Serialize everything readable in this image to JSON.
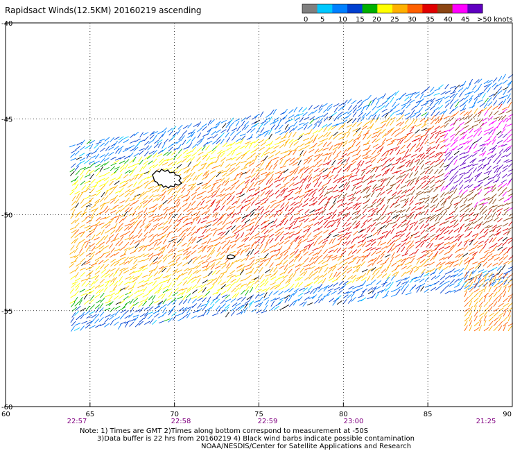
{
  "title": "Rapidsact Winds(12.5KM) 20160219 ascending",
  "colorbar": {
    "labels": [
      "0",
      "5",
      "10",
      "15",
      "20",
      "25",
      "30",
      "35",
      "40",
      "45",
      ">50 knots"
    ],
    "colors": [
      "#7f7f7f",
      "#00c8ff",
      "#0080ff",
      "#0040d0",
      "#00b000",
      "#ffff00",
      "#ffb000",
      "#ff6000",
      "#e00000",
      "#8b4513",
      "#ff00ff",
      "#6000c0"
    ]
  },
  "map": {
    "lon_range": [
      60,
      90
    ],
    "lat_range": [
      -60,
      -40
    ],
    "x_ticks": [
      "60",
      "65",
      "70",
      "75",
      "80",
      "85",
      "90"
    ],
    "y_ticks": [
      "-40",
      "-45",
      "-50",
      "-55",
      "-60"
    ],
    "time_labels": [
      "22:57",
      "22:58",
      "22:59",
      "23:00",
      "21:25"
    ],
    "grid": true
  },
  "notes": [
    "Note: 1) Times are GMT 2)Times along bottom correspond to measurement at -50S",
    "3)Data buffer is 22 hrs from 20160219 4) Black wind barbs indicate possible contamination",
    "NOAA/NESDIS/Center for Satellite Applications and Research"
  ]
}
